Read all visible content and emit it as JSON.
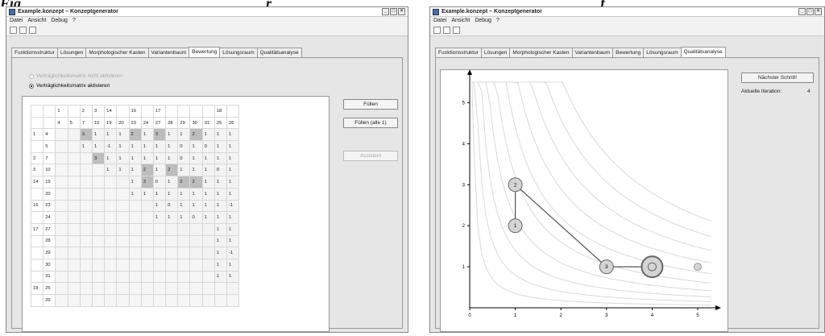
{
  "caption": {
    "left": "Fig",
    "mid": "r",
    "right": "f"
  },
  "window1": {
    "title": "Example.konzept – Konzeptgenerator",
    "menu": [
      "Datei",
      "Ansicht",
      "Debug",
      "?"
    ],
    "tabs": [
      "Funktionsstruktur",
      "Lösungen",
      "Morphologischer Kasten",
      "Variantenbaum",
      "Bewertung",
      "Lösungsraum",
      "Qualitätsanalyse"
    ],
    "active_tab": 4,
    "radio_off": "Verträglichkeitsmatrix nicht aktivieren",
    "radio_on": "Verträglichkeitsmatrix aktivieren",
    "buttons": {
      "fill": "Füllen",
      "fill_all": "Füllen (alle 1)",
      "assistant": "Assistent"
    },
    "matrix": {
      "group_header": [
        "1",
        "",
        "2",
        "3",
        "14",
        "",
        "16",
        "",
        "17",
        "",
        "",
        "",
        "",
        "18",
        ""
      ],
      "col_header": [
        "4",
        "5",
        "7",
        "10",
        "19",
        "20",
        "23",
        "24",
        "27",
        "28",
        "29",
        "30",
        "31",
        "25",
        "26"
      ],
      "rows": [
        {
          "g": "1",
          "s": "4",
          "cells": [
            "",
            "",
            "3",
            "1",
            "1",
            "1",
            "2",
            "1",
            "3",
            "1",
            "1",
            "2",
            "1",
            "1",
            "1"
          ],
          "diag": [
            2,
            6,
            8,
            11
          ]
        },
        {
          "g": "",
          "s": "5",
          "cells": [
            "",
            "",
            "1",
            "1",
            "-1",
            "1",
            "1",
            "1",
            "1",
            "1",
            "0",
            "1",
            "0",
            "1",
            "1"
          ],
          "diag": []
        },
        {
          "g": "2",
          "s": "7",
          "cells": [
            "",
            "",
            "",
            "3",
            "1",
            "1",
            "1",
            "1",
            "1",
            "1",
            "0",
            "1",
            "1",
            "1",
            "1"
          ],
          "diag": [
            3
          ]
        },
        {
          "g": "3",
          "s": "10",
          "cells": [
            "",
            "",
            "",
            "",
            "1",
            "1",
            "1",
            "2",
            "1",
            "2",
            "1",
            "1",
            "1",
            "0",
            "1"
          ],
          "diag": [
            7,
            9
          ]
        },
        {
          "g": "14",
          "s": "19",
          "cells": [
            "",
            "",
            "",
            "",
            "",
            "",
            "1",
            "3",
            "0",
            "1",
            "2",
            "2",
            "1",
            "1",
            "1"
          ],
          "diag": [
            7,
            10,
            11
          ]
        },
        {
          "g": "",
          "s": "20",
          "cells": [
            "",
            "",
            "",
            "",
            "",
            "",
            "1",
            "1",
            "1",
            "1",
            "1",
            "1",
            "1",
            "1",
            "1"
          ],
          "diag": []
        },
        {
          "g": "16",
          "s": "23",
          "cells": [
            "",
            "",
            "",
            "",
            "",
            "",
            "",
            "",
            "1",
            "0",
            "1",
            "1",
            "1",
            "1",
            "-1"
          ],
          "diag": []
        },
        {
          "g": "",
          "s": "24",
          "cells": [
            "",
            "",
            "",
            "",
            "",
            "",
            "",
            "",
            "1",
            "1",
            "1",
            "0",
            "1",
            "1",
            "1"
          ],
          "diag": []
        },
        {
          "g": "17",
          "s": "27",
          "cells": [
            "",
            "",
            "",
            "",
            "",
            "",
            "",
            "",
            "",
            "",
            "",
            "",
            "",
            "1",
            "1"
          ],
          "diag": []
        },
        {
          "g": "",
          "s": "28",
          "cells": [
            "",
            "",
            "",
            "",
            "",
            "",
            "",
            "",
            "",
            "",
            "",
            "",
            "",
            "1",
            "1"
          ],
          "diag": []
        },
        {
          "g": "",
          "s": "29",
          "cells": [
            "",
            "",
            "",
            "",
            "",
            "",
            "",
            "",
            "",
            "",
            "",
            "",
            "",
            "1",
            "-1"
          ],
          "diag": []
        },
        {
          "g": "",
          "s": "30",
          "cells": [
            "",
            "",
            "",
            "",
            "",
            "",
            "",
            "",
            "",
            "",
            "",
            "",
            "",
            "1",
            "1"
          ],
          "diag": []
        },
        {
          "g": "",
          "s": "31",
          "cells": [
            "",
            "",
            "",
            "",
            "",
            "",
            "",
            "",
            "",
            "",
            "",
            "",
            "",
            "1",
            "1"
          ],
          "diag": []
        },
        {
          "g": "18",
          "s": "25",
          "cells": [
            "",
            "",
            "",
            "",
            "",
            "",
            "",
            "",
            "",
            "",
            "",
            "",
            "",
            "",
            ""
          ],
          "diag": []
        },
        {
          "g": "",
          "s": "26",
          "cells": [
            "",
            "",
            "",
            "",
            "",
            "",
            "",
            "",
            "",
            "",
            "",
            "",
            "",
            "",
            ""
          ],
          "diag": []
        }
      ]
    }
  },
  "window2": {
    "title": "Example.konzept – Konzeptgenerator",
    "menu": [
      "Datei",
      "Ansicht",
      "Debug",
      "?"
    ],
    "tabs": [
      "Funktionsstruktur",
      "Lösungen",
      "Morphologischer Kasten",
      "Variantenbaum",
      "Bewertung",
      "Lösungsraum",
      "Qualitätsanalyse"
    ],
    "active_tab": 6,
    "next_step": "Nächster Schritt!",
    "iteration_label": "Aktuelle Iteration:",
    "iteration_value": "4"
  },
  "chart_data": {
    "type": "scatter",
    "xlim": [
      0,
      5.3
    ],
    "ylim": [
      0,
      5.5
    ],
    "x_ticks": [
      0,
      1,
      2,
      3,
      4,
      5
    ],
    "y_ticks": [
      1,
      2,
      3,
      4,
      5
    ],
    "path": [
      {
        "label": "1",
        "x": 1,
        "y": 2
      },
      {
        "label": "2",
        "x": 1,
        "y": 3
      },
      {
        "label": "3",
        "x": 3,
        "y": 1
      },
      {
        "label": "",
        "x": 4,
        "y": 1,
        "current": true
      }
    ],
    "extra_points": [
      {
        "x": 5,
        "y": 1
      }
    ],
    "contour_levels": [
      0.35,
      0.8,
      1.4,
      2.2,
      3.2,
      4.4,
      5.8,
      7.4,
      9.2,
      11.2
    ],
    "colors": {
      "node_fill": "#d4d4d4",
      "node_stroke": "#666666",
      "contour": "#d9d9d9",
      "path": "#555555"
    }
  }
}
